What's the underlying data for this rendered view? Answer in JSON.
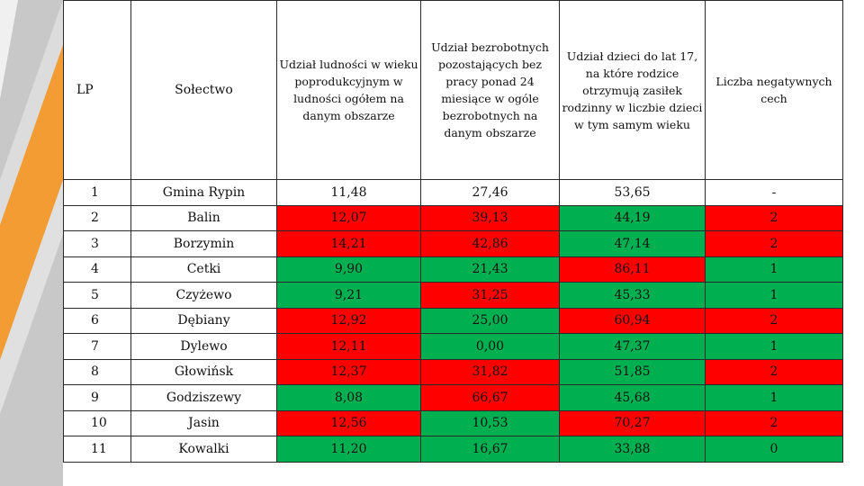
{
  "headers": {
    "lp": "LP",
    "solectwo": "Sołectwo",
    "col1": "Udział ludności w wieku poprodukcyjnym w ludności ogółem na danym obszarze",
    "col2": "Udział bezrobotnych pozostających bez pracy ponad 24 miesiące w ogóle bezrobotnych na danym obszarze",
    "col3": "Udział dzieci do lat 17, na które rodzice otrzymują zasiłek rodzinny w liczbie dzieci w tym samym wieku",
    "col4": "Liczba negatywnych cech"
  },
  "colors": {
    "red": "#ff0000",
    "green": "#00b050",
    "white": "#ffffff"
  },
  "rows": [
    {
      "lp": "1",
      "name": "Gmina Rypin",
      "v1": "11,48",
      "v2": "27,46",
      "v3": "53,65",
      "neg": "-",
      "c1": "white",
      "c2": "white",
      "c3": "white",
      "c4": "white"
    },
    {
      "lp": "2",
      "name": "Balin",
      "v1": "12,07",
      "v2": "39,13",
      "v3": "44,19",
      "neg": "2",
      "c1": "red",
      "c2": "red",
      "c3": "green",
      "c4": "red"
    },
    {
      "lp": "3",
      "name": "Borzymin",
      "v1": "14,21",
      "v2": "42,86",
      "v3": "47,14",
      "neg": "2",
      "c1": "red",
      "c2": "red",
      "c3": "green",
      "c4": "red"
    },
    {
      "lp": "4",
      "name": "Cetki",
      "v1": "9,90",
      "v2": "21,43",
      "v3": "86,11",
      "neg": "1",
      "c1": "green",
      "c2": "green",
      "c3": "red",
      "c4": "green"
    },
    {
      "lp": "5",
      "name": "Czyżewo",
      "v1": "9,21",
      "v2": "31,25",
      "v3": "45,33",
      "neg": "1",
      "c1": "green",
      "c2": "red",
      "c3": "green",
      "c4": "green"
    },
    {
      "lp": "6",
      "name": "Dębiany",
      "v1": "12,92",
      "v2": "25,00",
      "v3": "60,94",
      "neg": "2",
      "c1": "red",
      "c2": "green",
      "c3": "red",
      "c4": "red"
    },
    {
      "lp": "7",
      "name": "Dylewo",
      "v1": "12,11",
      "v2": "0,00",
      "v3": "47,37",
      "neg": "1",
      "c1": "red",
      "c2": "green",
      "c3": "green",
      "c4": "green"
    },
    {
      "lp": "8",
      "name": "Głowińsk",
      "v1": "12,37",
      "v2": "31,82",
      "v3": "51,85",
      "neg": "2",
      "c1": "red",
      "c2": "red",
      "c3": "green",
      "c4": "red"
    },
    {
      "lp": "9",
      "name": "Godziszewy",
      "v1": "8,08",
      "v2": "66,67",
      "v3": "45,68",
      "neg": "1",
      "c1": "green",
      "c2": "red",
      "c3": "green",
      "c4": "green"
    },
    {
      "lp": "10",
      "name": "Jasin",
      "v1": "12,56",
      "v2": "10,53",
      "v3": "70,27",
      "neg": "2",
      "c1": "red",
      "c2": "green",
      "c3": "red",
      "c4": "red"
    },
    {
      "lp": "11",
      "name": "Kowalki",
      "v1": "11,20",
      "v2": "16,67",
      "v3": "33,88",
      "neg": "0",
      "c1": "green",
      "c2": "green",
      "c3": "green",
      "c4": "green"
    }
  ]
}
